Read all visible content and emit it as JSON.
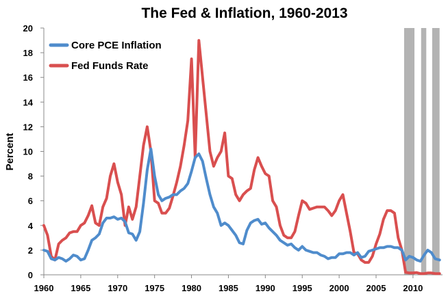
{
  "chart_data": {
    "type": "line",
    "title": "The Fed & Inflation, 1960-2013",
    "xlabel": "",
    "ylabel": "Percent",
    "xlim": [
      1960,
      2014
    ],
    "ylim": [
      0,
      20
    ],
    "xticks": [
      "1960",
      "1965",
      "1970",
      "1975",
      "1980",
      "1985",
      "1990",
      "1995",
      "2000",
      "2005",
      "2010"
    ],
    "yticks": [
      "0",
      "2",
      "4",
      "6",
      "8",
      "10",
      "12",
      "14",
      "16",
      "18",
      "20"
    ],
    "grid": false,
    "legend": "top-left",
    "recession_bars_color": "#b3b3b3",
    "shaded_periods": [
      [
        2008.8,
        2010.2
      ],
      [
        2011.1,
        2011.8
      ],
      [
        2012.6,
        2013.6
      ]
    ],
    "series": [
      {
        "name": "Core PCE Inflation",
        "color": "#4f8ccc",
        "x": [
          1960,
          1960.5,
          1961,
          1961.5,
          1962,
          1962.5,
          1963,
          1963.5,
          1964,
          1964.5,
          1965,
          1965.5,
          1966,
          1966.5,
          1967,
          1967.5,
          1968,
          1968.5,
          1969,
          1969.5,
          1970,
          1970.5,
          1971,
          1971.5,
          1972,
          1972.5,
          1973,
          1973.5,
          1974,
          1974.5,
          1975,
          1975.5,
          1976,
          1976.5,
          1977,
          1977.5,
          1978,
          1978.5,
          1979,
          1979.5,
          1980,
          1980.5,
          1981,
          1981.5,
          1982,
          1982.5,
          1983,
          1983.5,
          1984,
          1984.5,
          1985,
          1985.5,
          1986,
          1986.5,
          1987,
          1987.5,
          1988,
          1988.5,
          1989,
          1989.5,
          1990,
          1990.5,
          1991,
          1991.5,
          1992,
          1992.5,
          1993,
          1993.5,
          1994,
          1994.5,
          1995,
          1995.5,
          1996,
          1996.5,
          1997,
          1997.5,
          1998,
          1998.5,
          1999,
          1999.5,
          2000,
          2000.5,
          2001,
          2001.5,
          2002,
          2002.5,
          2003,
          2003.5,
          2004,
          2004.5,
          2005,
          2005.5,
          2006,
          2006.5,
          2007,
          2007.5,
          2008,
          2008.5,
          2009,
          2009.5,
          2010,
          2010.5,
          2011,
          2011.5,
          2012,
          2012.5,
          2013,
          2013.6
        ],
        "values": [
          2.0,
          1.9,
          1.3,
          1.2,
          1.4,
          1.3,
          1.1,
          1.3,
          1.6,
          1.5,
          1.2,
          1.3,
          2.0,
          2.8,
          3.0,
          3.3,
          4.2,
          4.6,
          4.6,
          4.7,
          4.5,
          4.6,
          4.3,
          3.4,
          3.3,
          2.8,
          3.5,
          5.8,
          8.5,
          10.2,
          8.0,
          6.5,
          6.0,
          6.2,
          6.3,
          6.5,
          6.5,
          6.8,
          7.0,
          7.4,
          8.4,
          9.5,
          9.8,
          9.2,
          7.8,
          6.5,
          5.5,
          5.0,
          4.0,
          4.2,
          4.0,
          3.6,
          3.2,
          2.6,
          2.5,
          3.6,
          4.2,
          4.4,
          4.5,
          4.1,
          4.2,
          3.8,
          3.5,
          3.2,
          2.8,
          2.6,
          2.4,
          2.5,
          2.2,
          2.0,
          2.3,
          2.0,
          1.9,
          1.8,
          1.8,
          1.6,
          1.5,
          1.3,
          1.4,
          1.4,
          1.7,
          1.7,
          1.8,
          1.8,
          1.6,
          1.8,
          1.4,
          1.5,
          1.9,
          2.0,
          2.1,
          2.2,
          2.2,
          2.3,
          2.3,
          2.2,
          2.2,
          2.0,
          1.2,
          1.5,
          1.4,
          1.2,
          1.1,
          1.6,
          2.0,
          1.8,
          1.3,
          1.2
        ]
      },
      {
        "name": "Fed Funds Rate",
        "color": "#d94f4f",
        "x": [
          1960,
          1960.5,
          1961,
          1961.5,
          1962,
          1962.5,
          1963,
          1963.5,
          1964,
          1964.5,
          1965,
          1965.5,
          1966,
          1966.5,
          1967,
          1967.5,
          1968,
          1968.5,
          1969,
          1969.5,
          1970,
          1970.5,
          1971,
          1971.5,
          1972,
          1972.5,
          1973,
          1973.5,
          1974,
          1974.5,
          1975,
          1975.5,
          1976,
          1976.5,
          1977,
          1977.5,
          1978,
          1978.5,
          1979,
          1979.5,
          1980,
          1980.5,
          1981,
          1981.5,
          1982,
          1982.5,
          1983,
          1983.5,
          1984,
          1984.5,
          1985,
          1985.5,
          1986,
          1986.5,
          1987,
          1987.5,
          1988,
          1988.5,
          1989,
          1989.5,
          1990,
          1990.5,
          1991,
          1991.5,
          1992,
          1992.5,
          1993,
          1993.5,
          1994,
          1994.5,
          1995,
          1995.5,
          1996,
          1996.5,
          1997,
          1997.5,
          1998,
          1998.5,
          1999,
          1999.5,
          2000,
          2000.5,
          2001,
          2001.5,
          2002,
          2002.5,
          2003,
          2003.5,
          2004,
          2004.5,
          2005,
          2005.5,
          2006,
          2006.5,
          2007,
          2007.5,
          2008,
          2008.5,
          2009,
          2009.5,
          2010,
          2010.5,
          2011,
          2011.5,
          2012,
          2012.5,
          2013,
          2013.6
        ],
        "values": [
          4.0,
          3.2,
          1.5,
          1.2,
          2.5,
          2.8,
          3.0,
          3.4,
          3.5,
          3.5,
          4.0,
          4.2,
          4.8,
          5.6,
          4.2,
          4.0,
          5.5,
          6.2,
          8.0,
          9.0,
          7.5,
          6.5,
          4.0,
          5.5,
          4.5,
          5.5,
          8.0,
          10.5,
          12.0,
          10.0,
          6.0,
          5.8,
          5.0,
          5.0,
          5.4,
          6.4,
          7.5,
          8.8,
          10.5,
          12.5,
          17.5,
          9.5,
          19.0,
          16.0,
          13.0,
          10.0,
          8.8,
          9.5,
          10.0,
          11.5,
          8.0,
          7.8,
          6.5,
          6.0,
          6.5,
          6.8,
          7.0,
          8.5,
          9.5,
          8.8,
          8.2,
          8.0,
          6.0,
          5.5,
          4.0,
          3.2,
          3.0,
          3.0,
          3.5,
          4.8,
          6.0,
          5.8,
          5.3,
          5.4,
          5.5,
          5.5,
          5.5,
          5.2,
          4.8,
          5.2,
          6.0,
          6.5,
          5.0,
          3.5,
          1.8,
          1.7,
          1.2,
          1.0,
          1.0,
          1.5,
          2.5,
          3.3,
          4.5,
          5.2,
          5.2,
          5.0,
          3.0,
          2.0,
          0.2,
          0.15,
          0.15,
          0.18,
          0.1,
          0.1,
          0.15,
          0.15,
          0.1,
          0.1
        ]
      }
    ]
  }
}
